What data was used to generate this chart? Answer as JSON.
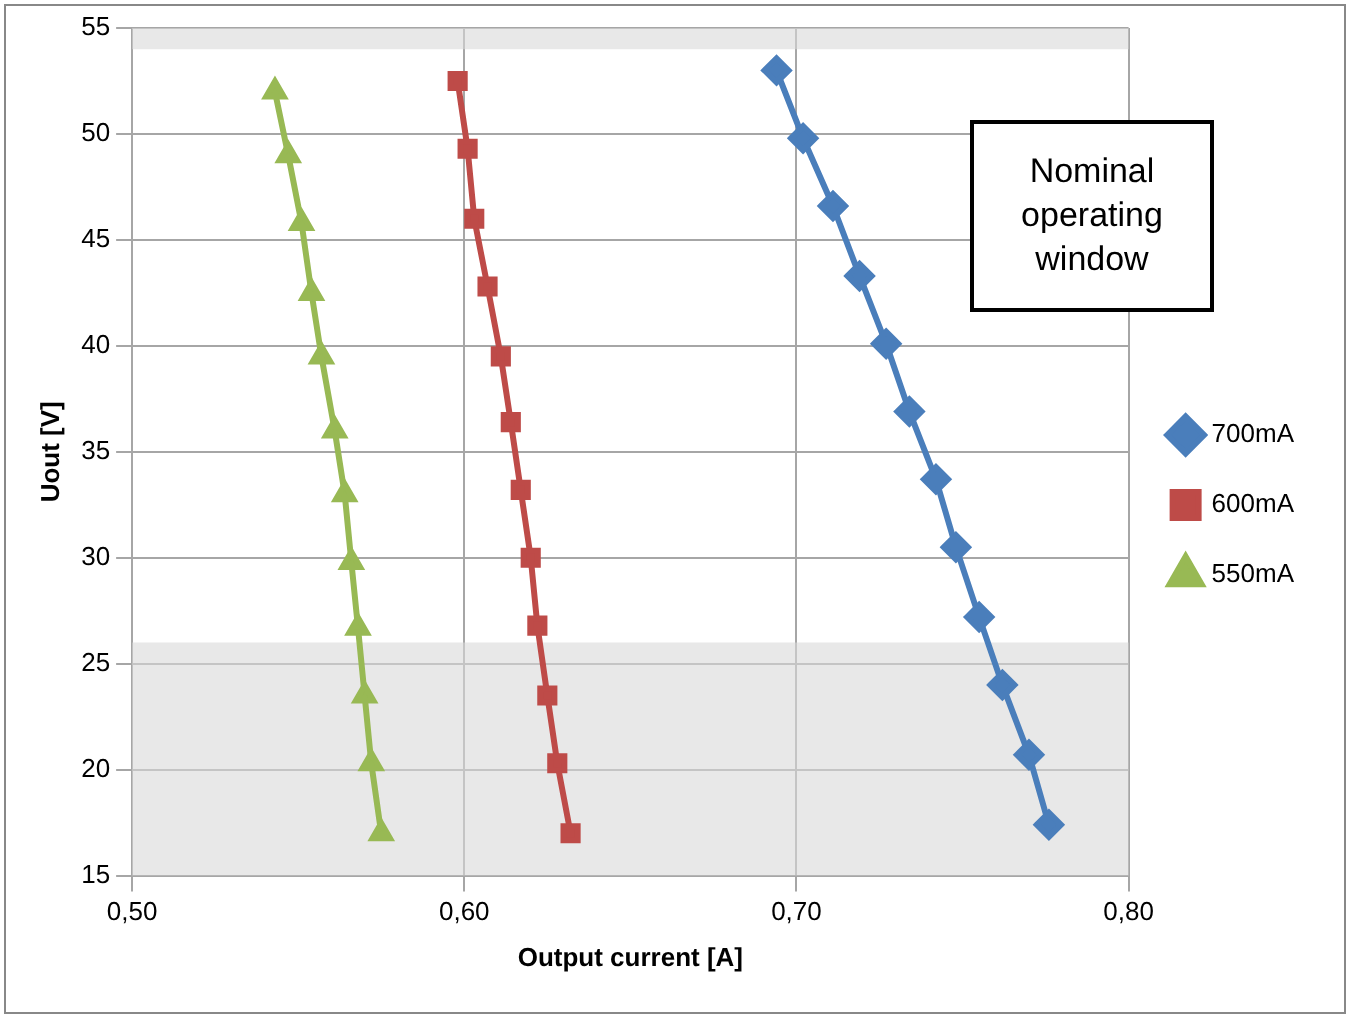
{
  "chart_data": {
    "type": "line",
    "xlabel": "Output current [A]",
    "ylabel": "Uout [V]",
    "xlim": [
      0.5,
      0.8
    ],
    "xticks": [
      {
        "value": 0.5,
        "label": "0,50"
      },
      {
        "value": 0.6,
        "label": "0,60"
      },
      {
        "value": 0.7,
        "label": "0,70"
      },
      {
        "value": 0.8,
        "label": "0,80"
      }
    ],
    "ylim": [
      15,
      55
    ],
    "yticks": [
      15,
      20,
      25,
      30,
      35,
      40,
      45,
      50,
      55
    ],
    "grid": true,
    "legend": "right",
    "bands": [
      {
        "axis": "y",
        "from": 15,
        "to": 26,
        "color": "#d9d9d9"
      },
      {
        "axis": "y",
        "from": 54,
        "to": 55,
        "color": "#d9d9d9"
      }
    ],
    "annotations": [
      "Nominal operating window"
    ],
    "series": [
      {
        "name": "700mA",
        "color": "#4a7ebb",
        "marker": "diamond",
        "x": [
          0.694,
          0.702,
          0.711,
          0.719,
          0.727,
          0.734,
          0.742,
          0.748,
          0.755,
          0.762,
          0.77,
          0.776
        ],
        "values": [
          53,
          49.8,
          46.6,
          43.3,
          40.1,
          36.9,
          33.7,
          30.5,
          27.2,
          24,
          20.7,
          17.4
        ]
      },
      {
        "name": "600mA",
        "color": "#be4b48",
        "marker": "square",
        "x": [
          0.598,
          0.601,
          0.603,
          0.607,
          0.611,
          0.614,
          0.617,
          0.62,
          0.622,
          0.625,
          0.628,
          0.632
        ],
        "values": [
          52.5,
          49.3,
          46,
          42.8,
          39.5,
          36.4,
          33.2,
          30,
          26.8,
          23.5,
          20.3,
          17
        ]
      },
      {
        "name": "550mA",
        "color": "#98b954",
        "marker": "triangle",
        "x": [
          0.543,
          0.547,
          0.551,
          0.554,
          0.557,
          0.561,
          0.564,
          0.566,
          0.568,
          0.57,
          0.572,
          0.575
        ],
        "values": [
          52,
          49,
          45.8,
          42.5,
          39.5,
          36,
          33,
          29.8,
          26.7,
          23.5,
          20.3,
          17
        ]
      }
    ]
  }
}
